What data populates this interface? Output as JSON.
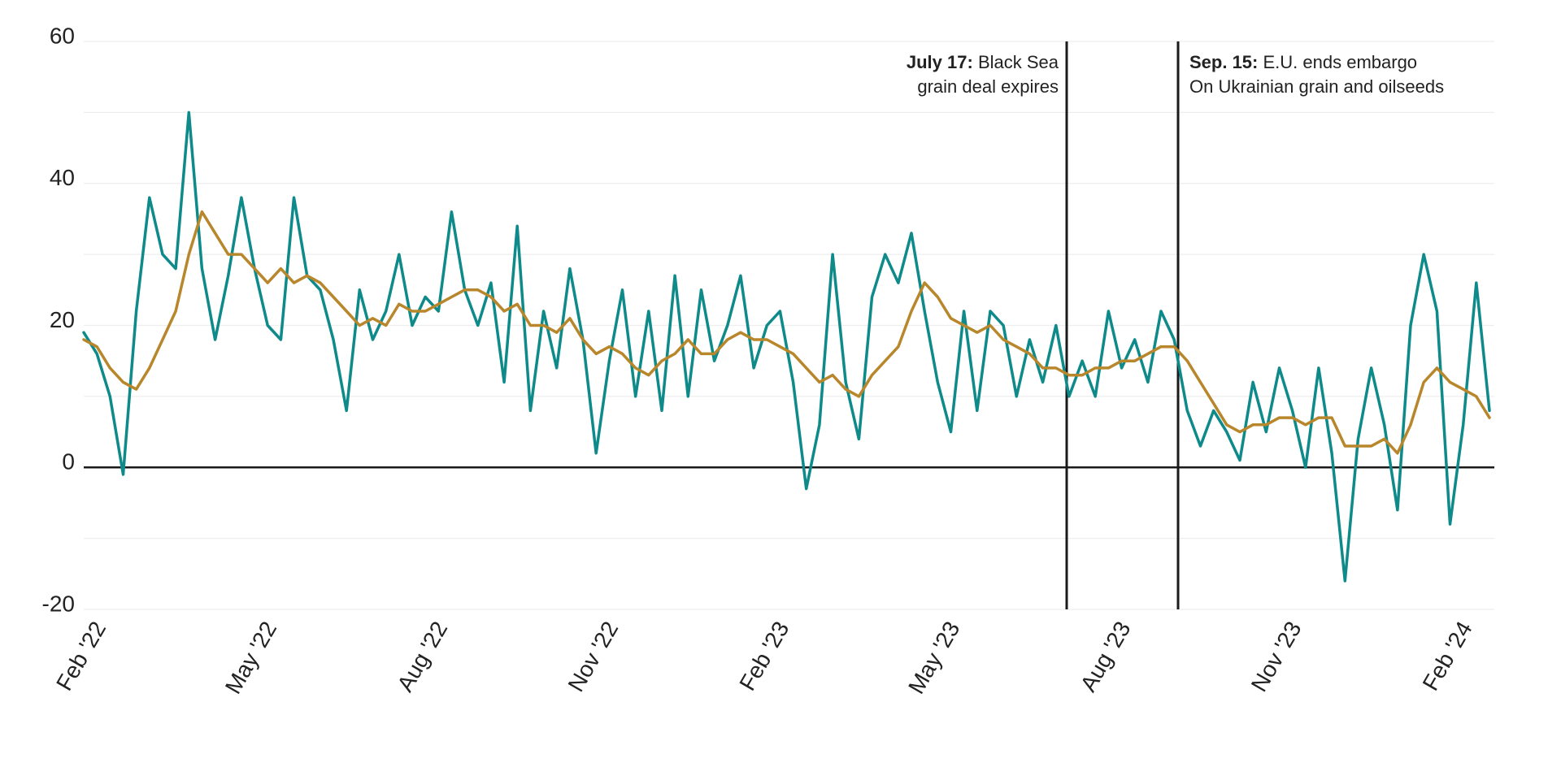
{
  "chart_data": {
    "type": "line",
    "categories": [
      "Feb '22",
      null,
      null,
      null,
      null,
      null,
      null,
      null,
      null,
      null,
      null,
      null,
      null,
      "May '22",
      null,
      null,
      null,
      null,
      null,
      null,
      null,
      null,
      null,
      null,
      null,
      null,
      "Aug '22",
      null,
      null,
      null,
      null,
      null,
      null,
      null,
      null,
      null,
      null,
      null,
      null,
      "Nov '22",
      null,
      null,
      null,
      null,
      null,
      null,
      null,
      null,
      null,
      null,
      null,
      null,
      "Feb '23",
      null,
      null,
      null,
      null,
      null,
      null,
      null,
      null,
      null,
      null,
      null,
      null,
      "May '23",
      null,
      null,
      null,
      null,
      null,
      null,
      null,
      null,
      null,
      null,
      null,
      null,
      "Aug '23",
      null,
      null,
      null,
      null,
      null,
      null,
      null,
      null,
      null,
      null,
      null,
      null,
      "Nov '23",
      null,
      null,
      null,
      null,
      null,
      null,
      null,
      null,
      null,
      null,
      null,
      null,
      "Feb '24",
      null,
      null,
      null
    ],
    "series": [
      {
        "color": "#0e8a8a",
        "values": [
          19,
          16,
          10,
          -1,
          22,
          38,
          30,
          28,
          50,
          28,
          18,
          27,
          38,
          28,
          20,
          18,
          38,
          27,
          25,
          18,
          8,
          25,
          18,
          22,
          30,
          20,
          24,
          22,
          36,
          25,
          20,
          26,
          12,
          34,
          8,
          22,
          14,
          28,
          18,
          2,
          15,
          25,
          10,
          22,
          8,
          27,
          10,
          25,
          15,
          20,
          27,
          14,
          20,
          22,
          12,
          -3,
          6,
          30,
          12,
          4,
          24,
          30,
          26,
          33,
          22,
          12,
          5,
          22,
          8,
          22,
          20,
          10,
          18,
          12,
          20,
          10,
          15,
          10,
          22,
          14,
          18,
          12,
          22,
          18,
          8,
          3,
          8,
          5,
          1,
          12,
          5,
          14,
          8,
          0,
          14,
          2,
          -16,
          4,
          14,
          6,
          -6,
          20,
          30,
          22,
          -8,
          6,
          26,
          8
        ]
      },
      {
        "color": "#b8862b",
        "values": [
          18,
          17,
          14,
          12,
          11,
          14,
          18,
          22,
          30,
          36,
          33,
          30,
          30,
          28,
          26,
          28,
          26,
          27,
          26,
          24,
          22,
          20,
          21,
          20,
          23,
          22,
          22,
          23,
          24,
          25,
          25,
          24,
          22,
          23,
          20,
          20,
          19,
          21,
          18,
          16,
          17,
          16,
          14,
          13,
          15,
          16,
          18,
          16,
          16,
          18,
          19,
          18,
          18,
          17,
          16,
          14,
          12,
          13,
          11,
          10,
          13,
          15,
          17,
          22,
          26,
          24,
          21,
          20,
          19,
          20,
          18,
          17,
          16,
          14,
          14,
          13,
          13,
          14,
          14,
          15,
          15,
          16,
          17,
          17,
          15,
          12,
          9,
          6,
          5,
          6,
          6,
          7,
          7,
          6,
          7,
          7,
          3,
          3,
          3,
          4,
          2,
          6,
          12,
          14,
          12,
          11,
          10,
          7
        ]
      }
    ],
    "ylim": [
      -20,
      60
    ],
    "yticks": [
      -20,
      0,
      20,
      40,
      60
    ],
    "y_minor_ticks": [
      -10,
      10,
      30,
      50
    ],
    "grid": true,
    "annotations": [
      {
        "label": "July 17:",
        "text": [
          "Black Sea",
          "grain deal expires"
        ]
      },
      {
        "label": "Sep. 15:",
        "text": [
          "E.U. ends embargo",
          "On Ukrainian grain and oilseeds"
        ]
      }
    ]
  }
}
